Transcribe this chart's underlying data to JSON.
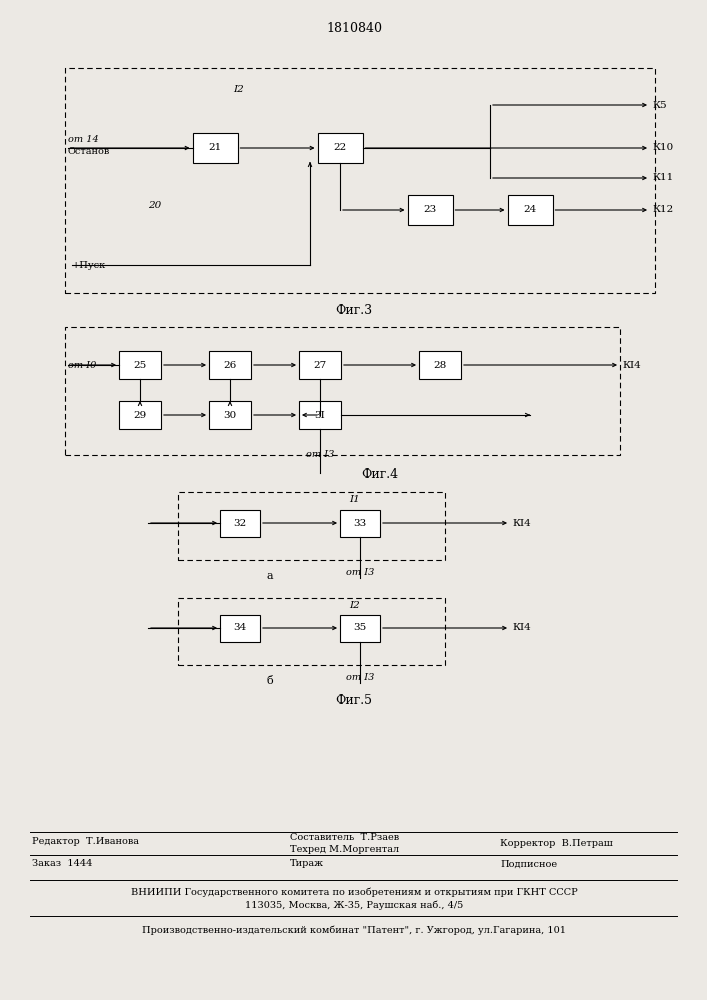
{
  "title": "1810840",
  "bg_color": "#ece9e4",
  "fig3_caption": "Фиг.3",
  "fig4_caption": "Фиг.4",
  "fig5_caption": "Фиг.5",
  "footer": {
    "editor": "Редактор  Т.Иванова",
    "composer": "Составитель  Т.Рзаев",
    "techred": "Техред М.Моргентал",
    "corrector": "Корректор  В.Петраш",
    "order": "Заказ  1444",
    "tirazh": "Тираж",
    "podpisnoe": "Подписное",
    "vniip1": "ВНИИПИ Государственного комитета по изобретениям и открытиям при ГКНТ СССР",
    "vniip2": "113035, Москва, Ж-35, Раушская наб., 4/5",
    "factory": "Производственно-издательский комбинат \"Патент\", г. Ужгород, ул.Гагарина, 101"
  }
}
